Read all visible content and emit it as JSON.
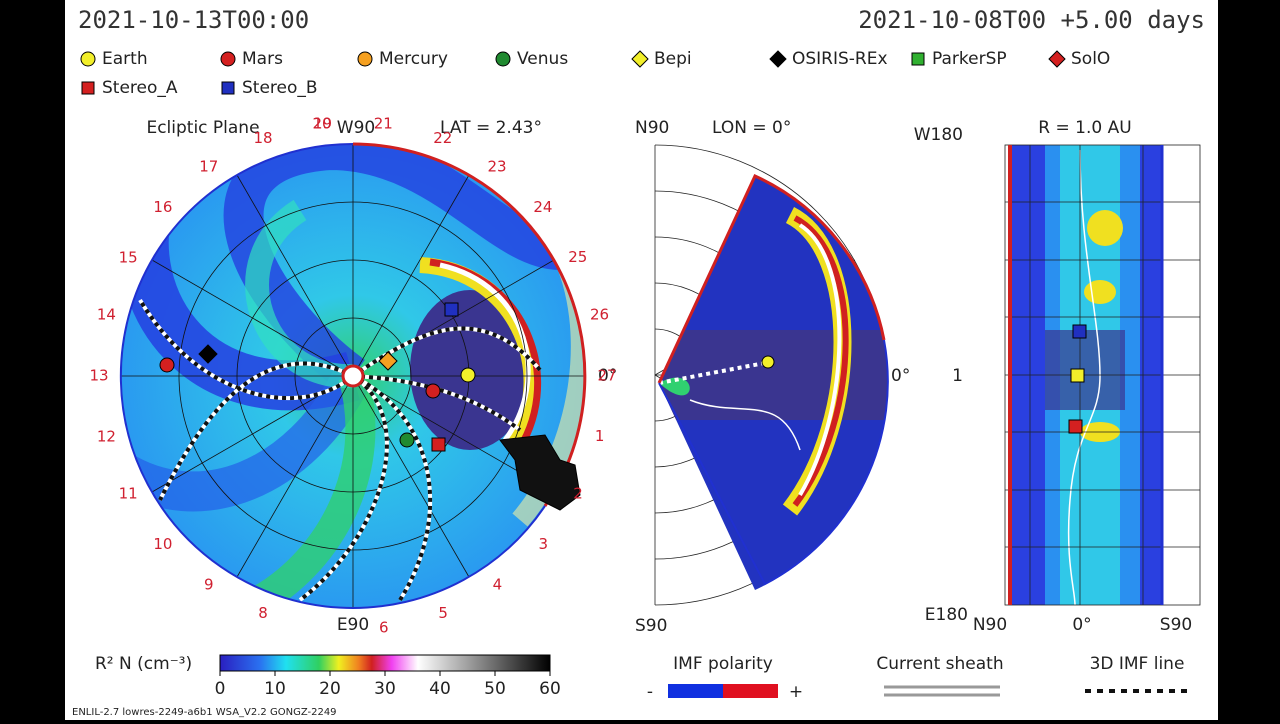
{
  "header": {
    "time": "2021-10-13T00:00",
    "run": "2021-10-08T00 +5.00 days"
  },
  "legend": [
    {
      "label": "Earth",
      "color": "#f2ef2a",
      "shape": "circle"
    },
    {
      "label": "Mars",
      "color": "#d42020",
      "shape": "circle"
    },
    {
      "label": "Mercury",
      "color": "#f5a020",
      "shape": "circle"
    },
    {
      "label": "Venus",
      "color": "#208a30",
      "shape": "circle"
    },
    {
      "label": "Bepi",
      "color": "#f2ef2a",
      "shape": "diamond"
    },
    {
      "label": "OSIRIS-REx",
      "color": "#000000",
      "shape": "diamond"
    },
    {
      "label": "ParkerSP",
      "color": "#30b030",
      "shape": "square"
    },
    {
      "label": "SolO",
      "color": "#d42020",
      "shape": "diamond"
    },
    {
      "label": "Stereo_A",
      "color": "#d42020",
      "shape": "square"
    },
    {
      "label": "Stereo_B",
      "color": "#2030c0",
      "shape": "square"
    }
  ],
  "ecliptic": {
    "title": "Ecliptic Plane",
    "top_label": "W90",
    "lat": "LAT = 2.43°",
    "bottom_label": "E90",
    "right_label": "0°",
    "numbers": [
      "20",
      "21",
      "22",
      "23",
      "24",
      "25",
      "26",
      "27",
      "1",
      "2",
      "3",
      "4",
      "5",
      "6",
      "8",
      "9",
      "10",
      "11",
      "12",
      "13",
      "14",
      "15",
      "16",
      "17",
      "18",
      "19"
    ]
  },
  "meridional": {
    "top_label": "N90",
    "lon": "LON = 0°",
    "bottom_label": "S90",
    "right_label": "0°"
  },
  "radial": {
    "title": "R = 1.0 AU",
    "top_label": "W180",
    "bottom_label": "E180",
    "mid_label": "1",
    "x_labels": [
      "N90",
      "0°",
      "S90"
    ]
  },
  "colorbar": {
    "title": "R² N (cm⁻³)",
    "range": [
      0,
      60
    ],
    "ticks": [
      0,
      10,
      20,
      30,
      40,
      50,
      60
    ]
  },
  "imf": {
    "title": "IMF polarity",
    "minus": "-",
    "plus": "+"
  },
  "sheath": "Current sheath",
  "imf_line": "3D IMF line",
  "footer": "ENLIL-2.7 lowres-2249-a6b1 WSA_V2.2 GONGZ-2249"
}
